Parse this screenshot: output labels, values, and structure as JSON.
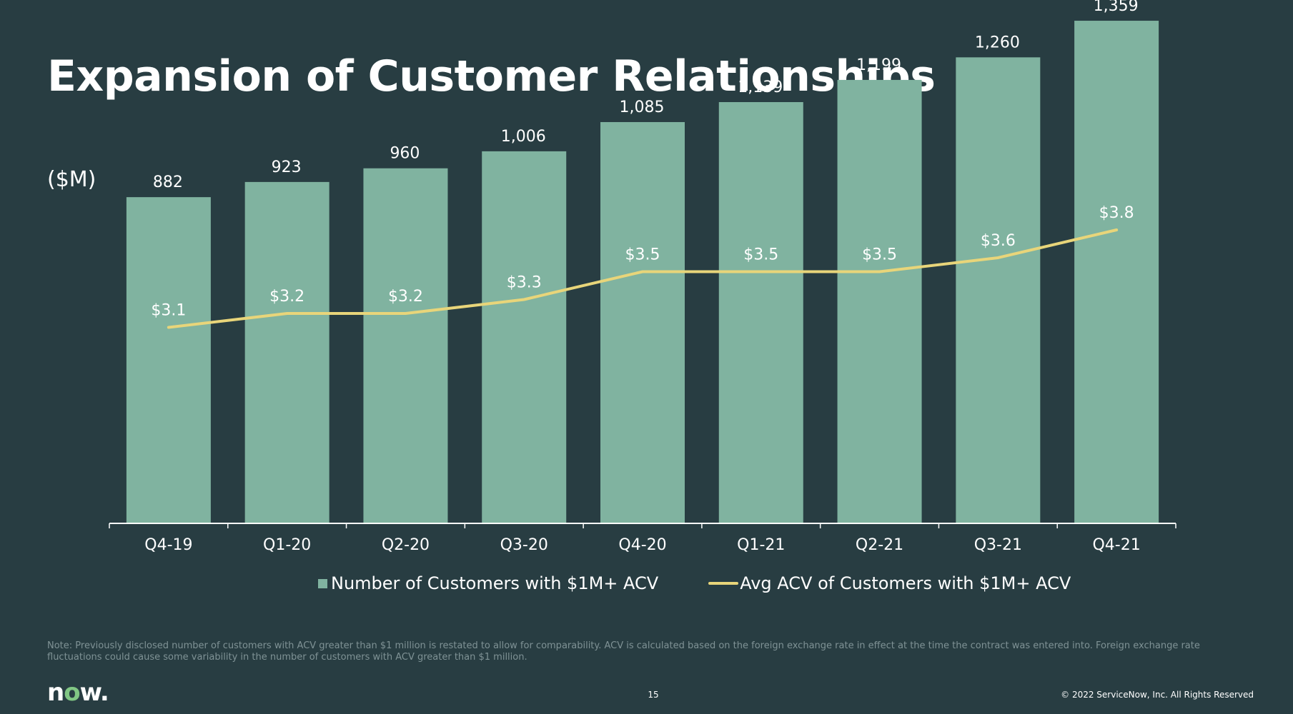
{
  "slide": {
    "title": "Expansion of Customer Relationships",
    "unit_label": "($M)",
    "note": "Note: Previously disclosed number of customers with ACV greater than $1 million is restated to allow for comparability. ACV is calculated based on the foreign exchange rate in effect at the time the contract was entered into. Foreign exchange rate fluctuations could cause some variability in the number of customers with ACV greater than $1 million.",
    "logo_text_n": "n",
    "logo_text_o": "o",
    "logo_text_w": "w.",
    "page_number": "15",
    "copyright": "© 2022 ServiceNow, Inc. All Rights Reserved"
  },
  "chart_data": {
    "type": "bar",
    "categories": [
      "Q4-19",
      "Q1-20",
      "Q2-20",
      "Q3-20",
      "Q4-20",
      "Q1-21",
      "Q2-21",
      "Q3-21",
      "Q4-21"
    ],
    "series": [
      {
        "name": "Number of Customers with $1M+ ACV",
        "type": "bar",
        "values": [
          882,
          923,
          960,
          1006,
          1085,
          1139,
          1199,
          1260,
          1359
        ],
        "labels": [
          "882",
          "923",
          "960",
          "1,006",
          "1,085",
          "1,139",
          "1,199",
          "1,260",
          "1,359"
        ],
        "color": "#80b3a0"
      },
      {
        "name": "Avg ACV of Customers with $1M+ ACV",
        "type": "line",
        "values": [
          3.1,
          3.2,
          3.2,
          3.3,
          3.5,
          3.5,
          3.5,
          3.6,
          3.8
        ],
        "labels": [
          "$3.1",
          "$3.2",
          "$3.2",
          "$3.3",
          "$3.5",
          "$3.5",
          "$3.5",
          "$3.6",
          "$3.8"
        ],
        "color": "#e8d57a"
      }
    ],
    "bar_ylim": [
      0,
      1400
    ],
    "line_ylim": [
      0,
      4.0
    ],
    "legend_position": "bottom",
    "grid": false,
    "background": "#283d42",
    "axis_color": "#ffffff"
  }
}
